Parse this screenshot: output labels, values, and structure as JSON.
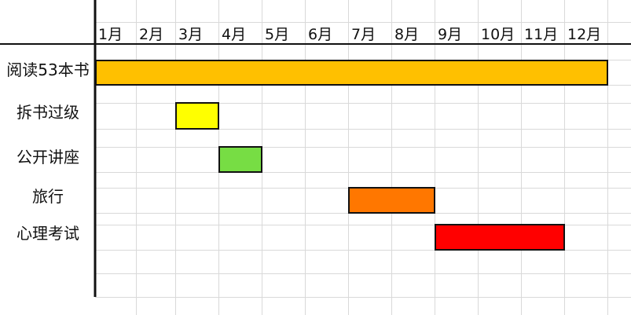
{
  "chart_data": {
    "type": "gantt",
    "months": [
      "1月",
      "2月",
      "3月",
      "4月",
      "5月",
      "6月",
      "7月",
      "8月",
      "9月",
      "10月",
      "11月",
      "12月"
    ],
    "tasks": [
      {
        "name": "阅读53本书",
        "start_month": 1,
        "end_month": 12,
        "color": "#FFC000"
      },
      {
        "name": "拆书过级",
        "start_month": 3,
        "end_month": 3,
        "color": "#FFFF00"
      },
      {
        "name": "公开讲座",
        "start_month": 4,
        "end_month": 4,
        "color": "#77DD44"
      },
      {
        "name": "旅行",
        "start_month": 7,
        "end_month": 8,
        "color": "#FF7700"
      },
      {
        "name": "心理考试",
        "start_month": 9,
        "end_month": 11,
        "color": "#FF0000"
      }
    ],
    "grid": true
  }
}
